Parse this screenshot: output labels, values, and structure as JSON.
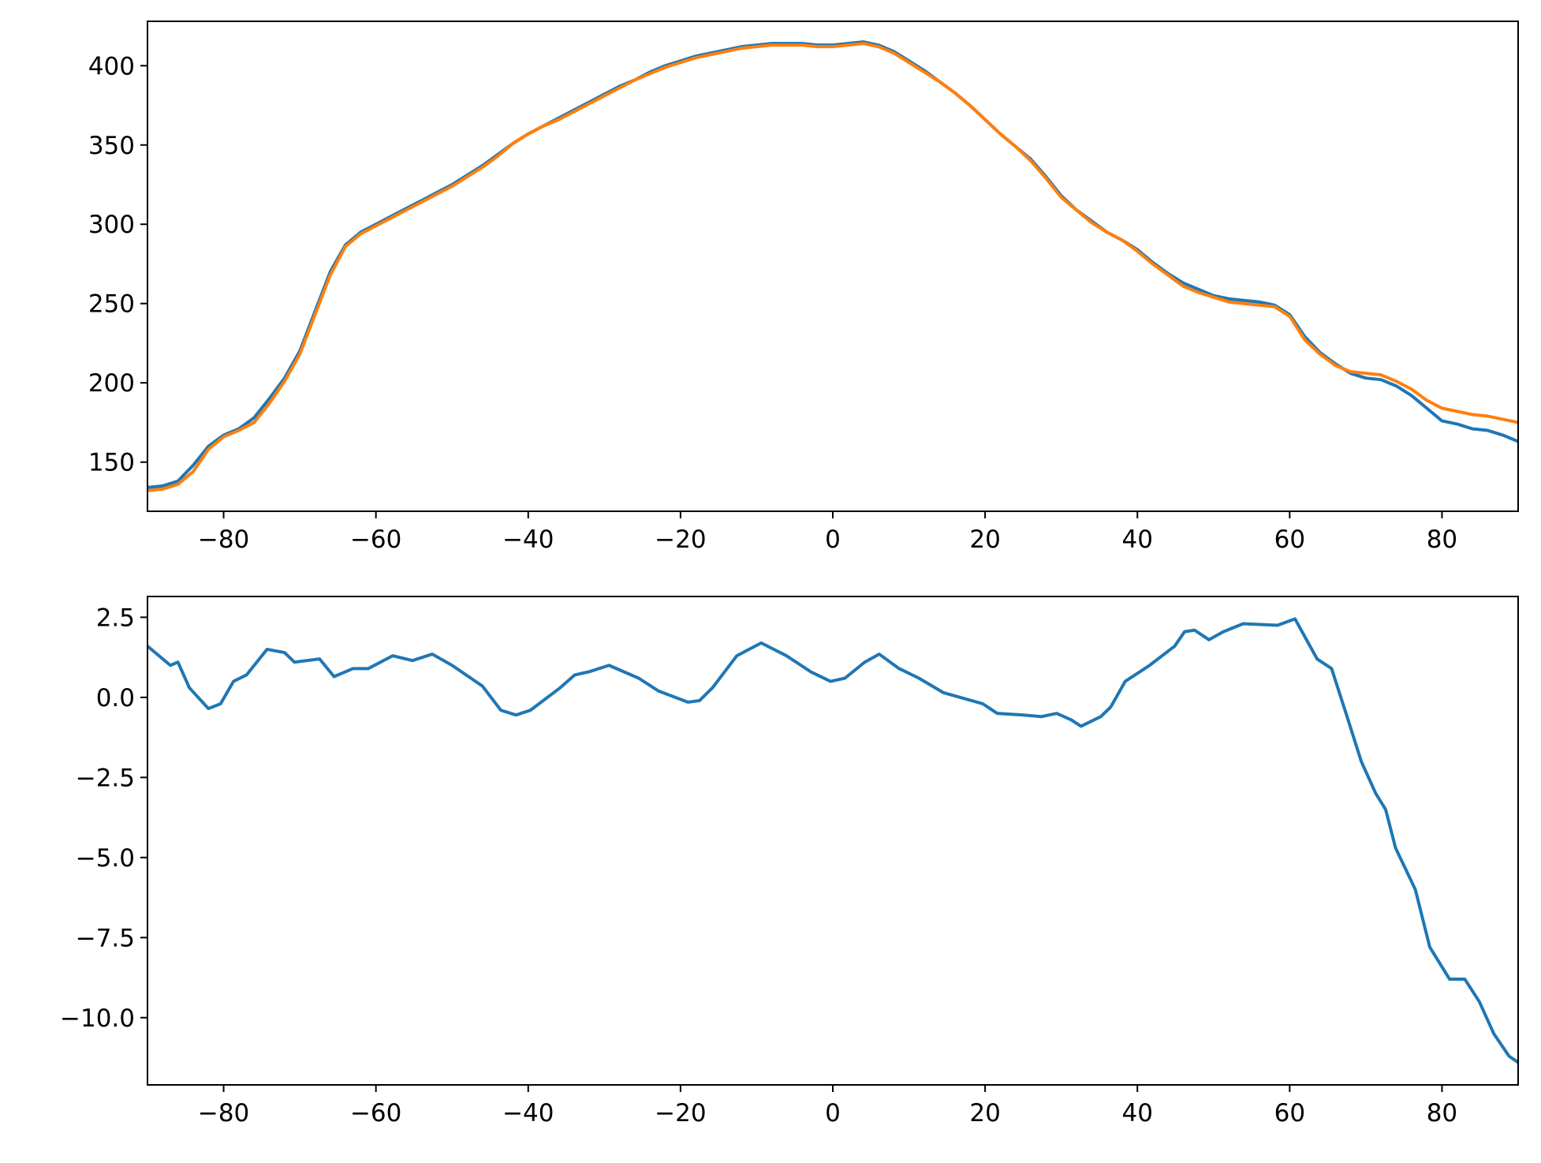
{
  "chart_data": [
    {
      "type": "line",
      "x": [
        -90,
        -88,
        -86,
        -84,
        -82,
        -80,
        -78,
        -76,
        -74,
        -72,
        -70,
        -68,
        -66,
        -64,
        -62,
        -60,
        -58,
        -56,
        -54,
        -52,
        -50,
        -48,
        -46,
        -44,
        -42,
        -40,
        -38,
        -36,
        -34,
        -32,
        -30,
        -28,
        -26,
        -24,
        -22,
        -20,
        -18,
        -16,
        -14,
        -12,
        -10,
        -8,
        -6,
        -4,
        -2,
        0,
        2,
        4,
        6,
        8,
        10,
        12,
        14,
        16,
        18,
        20,
        22,
        24,
        26,
        28,
        30,
        32,
        34,
        36,
        38,
        40,
        42,
        44,
        46,
        48,
        50,
        52,
        54,
        56,
        58,
        60,
        62,
        64,
        66,
        68,
        70,
        72,
        74,
        76,
        78,
        80,
        82,
        84,
        86,
        88,
        90
      ],
      "series": [
        {
          "color": "#1f77b4",
          "values": [
            134,
            135,
            138,
            148,
            160,
            167,
            171,
            178,
            190,
            203,
            220,
            245,
            270,
            287,
            295,
            300,
            305,
            310,
            315,
            320,
            325,
            331,
            337,
            344,
            351,
            357,
            362,
            367,
            372,
            377,
            382,
            387,
            391,
            396,
            400,
            403,
            406,
            408,
            410,
            412,
            413,
            414,
            414,
            414,
            413,
            413,
            414,
            415,
            413,
            409,
            403,
            397,
            390,
            383,
            375,
            366,
            357,
            349,
            341,
            330,
            318,
            309,
            302,
            295,
            290,
            284,
            276,
            269,
            263,
            259,
            255,
            253,
            252,
            251,
            249,
            243,
            229,
            219,
            212,
            206,
            203,
            202,
            198,
            192,
            184,
            176,
            174,
            171,
            170,
            167,
            163
          ]
        },
        {
          "color": "#ff7f0e",
          "values": [
            132,
            133,
            136,
            144,
            158,
            166,
            170,
            175,
            187,
            201,
            218,
            243,
            268,
            286,
            294,
            299,
            304,
            309,
            314,
            319,
            324,
            330,
            336,
            343,
            351,
            357,
            362,
            366,
            371,
            376,
            381,
            386,
            391,
            395,
            399,
            402,
            405,
            407,
            409,
            411,
            412,
            413,
            413,
            413,
            412,
            412,
            413,
            414,
            412,
            408,
            402,
            396,
            390,
            383,
            375,
            366,
            357,
            349,
            340,
            329,
            317,
            309,
            301,
            295,
            290,
            283,
            275,
            268,
            261,
            257,
            254,
            251,
            250,
            249,
            248,
            242,
            227,
            218,
            211,
            207,
            206,
            205,
            201,
            196,
            189,
            184,
            182,
            180,
            179,
            177,
            175
          ]
        }
      ],
      "xlim": [
        -90,
        90
      ],
      "ylim": [
        119,
        428
      ],
      "xticks": [
        {
          "value": -80,
          "label": "−80"
        },
        {
          "value": -60,
          "label": "−60"
        },
        {
          "value": -40,
          "label": "−40"
        },
        {
          "value": -20,
          "label": "−20"
        },
        0,
        20,
        40,
        60,
        80
      ],
      "yticks": [
        150,
        200,
        250,
        300,
        350,
        400
      ],
      "grid": false
    },
    {
      "type": "line",
      "x": [
        -90,
        -87,
        -86,
        -84.5,
        -82,
        -80.4,
        -78.7,
        -77,
        -74.3,
        -72,
        -70.7,
        -67.4,
        -65.5,
        -63,
        -61,
        -57.8,
        -55.2,
        -52.6,
        -50,
        -46,
        -43.6,
        -41.6,
        -39.7,
        -35.8,
        -33.9,
        -32,
        -29.4,
        -25.5,
        -22.9,
        -19,
        -17.5,
        -15.8,
        -12.6,
        -9.4,
        -6.1,
        -2.9,
        -0.3,
        1.6,
        4.2,
        6.1,
        8.7,
        11.3,
        14.5,
        19.7,
        21.6,
        24.9,
        27.4,
        29.4,
        31.3,
        32.6,
        35.2,
        36.5,
        38.4,
        41.6,
        44.9,
        46.2,
        47.5,
        49.4,
        51.3,
        53.9,
        58.4,
        60.7,
        63.6,
        65.5,
        67.4,
        69.4,
        71.3,
        72.6,
        73.9,
        76.5,
        78.4,
        81,
        83,
        84.9,
        86.8,
        88.8,
        90
      ],
      "series": [
        {
          "color": "#1f77b4",
          "values": [
            1.6,
            1.0,
            1.1,
            0.3,
            -0.35,
            -0.2,
            0.5,
            0.7,
            1.5,
            1.4,
            1.1,
            1.2,
            0.65,
            0.9,
            0.9,
            1.3,
            1.15,
            1.35,
            1.0,
            0.35,
            -0.4,
            -0.55,
            -0.4,
            0.3,
            0.7,
            0.8,
            1.0,
            0.6,
            0.2,
            -0.15,
            -0.1,
            0.3,
            1.3,
            1.7,
            1.3,
            0.8,
            0.5,
            0.6,
            1.1,
            1.35,
            0.9,
            0.6,
            0.15,
            -0.2,
            -0.5,
            -0.55,
            -0.6,
            -0.5,
            -0.7,
            -0.9,
            -0.6,
            -0.3,
            0.5,
            1.0,
            1.6,
            2.05,
            2.1,
            1.8,
            2.05,
            2.3,
            2.25,
            2.45,
            1.2,
            0.9,
            -0.5,
            -2.0,
            -3.0,
            -3.5,
            -4.7,
            -6.0,
            -7.8,
            -8.8,
            -8.8,
            -9.5,
            -10.5,
            -11.2,
            -11.4
          ]
        }
      ],
      "xlim": [
        -90,
        90
      ],
      "ylim": [
        -12.1,
        3.15
      ],
      "xticks": [
        {
          "value": -80,
          "label": "−80"
        },
        {
          "value": -60,
          "label": "−60"
        },
        {
          "value": -40,
          "label": "−40"
        },
        {
          "value": -20,
          "label": "−20"
        },
        0,
        20,
        40,
        60,
        80
      ],
      "yticks": [
        {
          "value": -10,
          "label": "−10.0"
        },
        {
          "value": -7.5,
          "label": "−7.5"
        },
        {
          "value": -5,
          "label": "−5.0"
        },
        {
          "value": -2.5,
          "label": "−2.5"
        },
        {
          "value": 0,
          "label": "0.0"
        },
        2.5
      ],
      "grid": false
    }
  ]
}
